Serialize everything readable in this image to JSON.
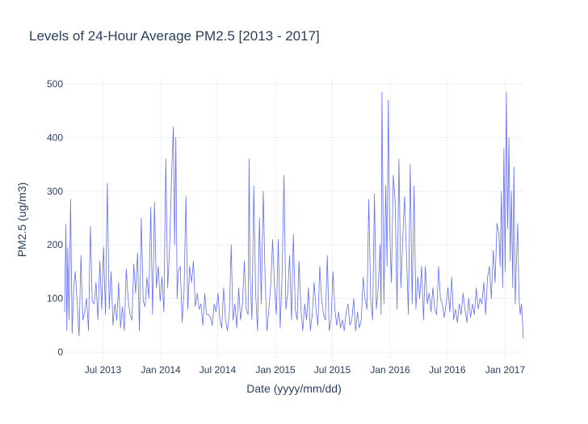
{
  "chart_data": {
    "type": "line",
    "title": "Levels of 24-Hour Average PM2.5 [2013 - 2017]",
    "xlabel": "Date (yyyy/mm/dd)",
    "ylabel": "PM2.5 (ug/m3)",
    "x_range": [
      "2013-03-01",
      "2017-02-28"
    ],
    "y_range": [
      0,
      500
    ],
    "ylim": [
      -15,
      512
    ],
    "y_ticks": [
      0,
      100,
      200,
      300,
      400,
      500
    ],
    "y_tick_labels": [
      "0",
      "100",
      "200",
      "300",
      "400",
      "500"
    ],
    "x_ticks": [
      "2013-07-01",
      "2014-01-01",
      "2014-07-01",
      "2015-01-01",
      "2015-07-01",
      "2016-01-01",
      "2016-07-01",
      "2017-01-01"
    ],
    "x_tick_labels": [
      "Jul 2013",
      "Jan 2014",
      "Jul 2014",
      "Jan 2015",
      "Jul 2015",
      "Jan 2016",
      "Jul 2016",
      "Jan 2017"
    ],
    "grid": true,
    "line_color": "#636efa",
    "series": [
      {
        "x": [
          "2013-03-01",
          "2013-03-05",
          "2013-03-08",
          "2013-03-11",
          "2013-03-15",
          "2013-03-20",
          "2013-03-25",
          "2013-03-30",
          "2013-04-04",
          "2013-04-10",
          "2013-04-16",
          "2013-04-22",
          "2013-04-28",
          "2013-05-04",
          "2013-05-10",
          "2013-05-16",
          "2013-05-22",
          "2013-05-28",
          "2013-06-03",
          "2013-06-09",
          "2013-06-15",
          "2013-06-21",
          "2013-06-27",
          "2013-07-03",
          "2013-07-09",
          "2013-07-15",
          "2013-07-21",
          "2013-07-27",
          "2013-08-02",
          "2013-08-08",
          "2013-08-14",
          "2013-08-20",
          "2013-08-26",
          "2013-09-01",
          "2013-09-07",
          "2013-09-13",
          "2013-09-19",
          "2013-09-25",
          "2013-10-01",
          "2013-10-07",
          "2013-10-13",
          "2013-10-19",
          "2013-10-25",
          "2013-10-31",
          "2013-11-06",
          "2013-11-12",
          "2013-11-18",
          "2013-11-24",
          "2013-11-30",
          "2013-12-06",
          "2013-12-12",
          "2013-12-18",
          "2013-12-24",
          "2013-12-30",
          "2014-01-05",
          "2014-01-11",
          "2014-01-17",
          "2014-01-23",
          "2014-01-29",
          "2014-02-04",
          "2014-02-10",
          "2014-02-14",
          "2014-02-18",
          "2014-02-22",
          "2014-02-26",
          "2014-03-04",
          "2014-03-10",
          "2014-03-16",
          "2014-03-22",
          "2014-03-28",
          "2014-04-03",
          "2014-04-09",
          "2014-04-15",
          "2014-04-21",
          "2014-04-27",
          "2014-05-03",
          "2014-05-09",
          "2014-05-15",
          "2014-05-21",
          "2014-05-27",
          "2014-06-02",
          "2014-06-08",
          "2014-06-14",
          "2014-06-20",
          "2014-06-26",
          "2014-07-02",
          "2014-07-08",
          "2014-07-14",
          "2014-07-20",
          "2014-07-26",
          "2014-08-01",
          "2014-08-07",
          "2014-08-13",
          "2014-08-19",
          "2014-08-25",
          "2014-08-31",
          "2014-09-06",
          "2014-09-12",
          "2014-09-18",
          "2014-09-24",
          "2014-09-30",
          "2014-10-06",
          "2014-10-09",
          "2014-10-12",
          "2014-10-18",
          "2014-10-24",
          "2014-10-30",
          "2014-11-05",
          "2014-11-11",
          "2014-11-17",
          "2014-11-23",
          "2014-11-29",
          "2014-12-05",
          "2014-12-11",
          "2014-12-17",
          "2014-12-23",
          "2014-12-29",
          "2015-01-04",
          "2015-01-10",
          "2015-01-16",
          "2015-01-22",
          "2015-01-28",
          "2015-02-03",
          "2015-02-09",
          "2015-02-15",
          "2015-02-21",
          "2015-02-27",
          "2015-03-05",
          "2015-03-11",
          "2015-03-17",
          "2015-03-23",
          "2015-03-29",
          "2015-04-04",
          "2015-04-10",
          "2015-04-16",
          "2015-04-22",
          "2015-04-28",
          "2015-05-04",
          "2015-05-10",
          "2015-05-16",
          "2015-05-22",
          "2015-05-28",
          "2015-06-03",
          "2015-06-09",
          "2015-06-15",
          "2015-06-21",
          "2015-06-27",
          "2015-07-03",
          "2015-07-09",
          "2015-07-15",
          "2015-07-21",
          "2015-07-27",
          "2015-08-02",
          "2015-08-08",
          "2015-08-14",
          "2015-08-20",
          "2015-08-26",
          "2015-09-01",
          "2015-09-07",
          "2015-09-13",
          "2015-09-19",
          "2015-09-25",
          "2015-10-01",
          "2015-10-07",
          "2015-10-13",
          "2015-10-19",
          "2015-10-25",
          "2015-10-31",
          "2015-11-06",
          "2015-11-12",
          "2015-11-18",
          "2015-11-24",
          "2015-11-30",
          "2015-12-03",
          "2015-12-06",
          "2015-12-12",
          "2015-12-18",
          "2015-12-22",
          "2015-12-26",
          "2015-12-30",
          "2016-01-05",
          "2016-01-11",
          "2016-01-17",
          "2016-01-23",
          "2016-01-29",
          "2016-02-04",
          "2016-02-10",
          "2016-02-16",
          "2016-02-22",
          "2016-02-28",
          "2016-03-05",
          "2016-03-11",
          "2016-03-17",
          "2016-03-23",
          "2016-03-29",
          "2016-04-04",
          "2016-04-10",
          "2016-04-16",
          "2016-04-22",
          "2016-04-28",
          "2016-05-04",
          "2016-05-10",
          "2016-05-16",
          "2016-05-22",
          "2016-05-28",
          "2016-06-03",
          "2016-06-09",
          "2016-06-15",
          "2016-06-21",
          "2016-06-27",
          "2016-07-03",
          "2016-07-09",
          "2016-07-15",
          "2016-07-21",
          "2016-07-27",
          "2016-08-02",
          "2016-08-08",
          "2016-08-14",
          "2016-08-20",
          "2016-08-26",
          "2016-09-01",
          "2016-09-07",
          "2016-09-13",
          "2016-09-19",
          "2016-09-25",
          "2016-10-01",
          "2016-10-07",
          "2016-10-13",
          "2016-10-19",
          "2016-10-25",
          "2016-10-31",
          "2016-11-06",
          "2016-11-12",
          "2016-11-18",
          "2016-11-24",
          "2016-11-30",
          "2016-12-06",
          "2016-12-12",
          "2016-12-16",
          "2016-12-20",
          "2016-12-24",
          "2016-12-28",
          "2017-01-01",
          "2017-01-05",
          "2017-01-09",
          "2017-01-13",
          "2017-01-17",
          "2017-01-21",
          "2017-01-25",
          "2017-01-29",
          "2017-02-02",
          "2017-02-06",
          "2017-02-10",
          "2017-02-14",
          "2017-02-18",
          "2017-02-22",
          "2017-02-28"
        ],
        "y": [
          75,
          238,
          40,
          195,
          60,
          285,
          35,
          120,
          150,
          90,
          30,
          180,
          60,
          75,
          100,
          40,
          235,
          95,
          90,
          130,
          60,
          170,
          80,
          195,
          70,
          315,
          80,
          150,
          50,
          90,
          60,
          130,
          45,
          85,
          40,
          155,
          100,
          70,
          60,
          165,
          110,
          185,
          40,
          250,
          95,
          85,
          140,
          100,
          270,
          70,
          280,
          120,
          160,
          95,
          140,
          75,
          360,
          120,
          190,
          320,
          420,
          200,
          400,
          100,
          150,
          160,
          55,
          110,
          290,
          80,
          160,
          130,
          170,
          85,
          110,
          80,
          90,
          50,
          110,
          70,
          70,
          65,
          50,
          90,
          75,
          110,
          60,
          45,
          120,
          60,
          40,
          70,
          200,
          60,
          90,
          45,
          120,
          60,
          90,
          170,
          80,
          70,
          360,
          150,
          60,
          310,
          110,
          40,
          250,
          90,
          300,
          140,
          40,
          80,
          125,
          210,
          120,
          70,
          210,
          45,
          140,
          330,
          80,
          110,
          180,
          60,
          220,
          80,
          60,
          170,
          80,
          40,
          90,
          60,
          120,
          40,
          70,
          130,
          80,
          50,
          160,
          100,
          70,
          60,
          180,
          40,
          60,
          150,
          80,
          50,
          75,
          45,
          60,
          40,
          75,
          90,
          50,
          60,
          100,
          40,
          75,
          45,
          60,
          140,
          100,
          80,
          285,
          100,
          60,
          295,
          80,
          120,
          200,
          70,
          485,
          90,
          310,
          160,
          470,
          240,
          130,
          330,
          280,
          80,
          360,
          120,
          210,
          290,
          180,
          70,
          350,
          90,
          310,
          80,
          140,
          100,
          160,
          60,
          160,
          90,
          110,
          75,
          120,
          80,
          70,
          160,
          100,
          90,
          65,
          90,
          120,
          75,
          140,
          60,
          80,
          55,
          90,
          70,
          110,
          80,
          55,
          100,
          65,
          90,
          70,
          120,
          80,
          100,
          90,
          130,
          70,
          140,
          160,
          100,
          190,
          130,
          240,
          220,
          160,
          300,
          120,
          380,
          150,
          485,
          230,
          400,
          170,
          300,
          120,
          345,
          90,
          170,
          240,
          100,
          70,
          90,
          25
        ]
      }
    ]
  }
}
